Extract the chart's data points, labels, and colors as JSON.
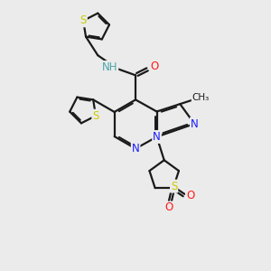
{
  "bg_color": "#ebebeb",
  "bond_color": "#1a1a1a",
  "bond_width": 1.6,
  "atom_colors": {
    "N": "#1a1aff",
    "O": "#ff1a1a",
    "S": "#cccc00",
    "H": "#4da6aa",
    "C": "#1a1a1a"
  }
}
